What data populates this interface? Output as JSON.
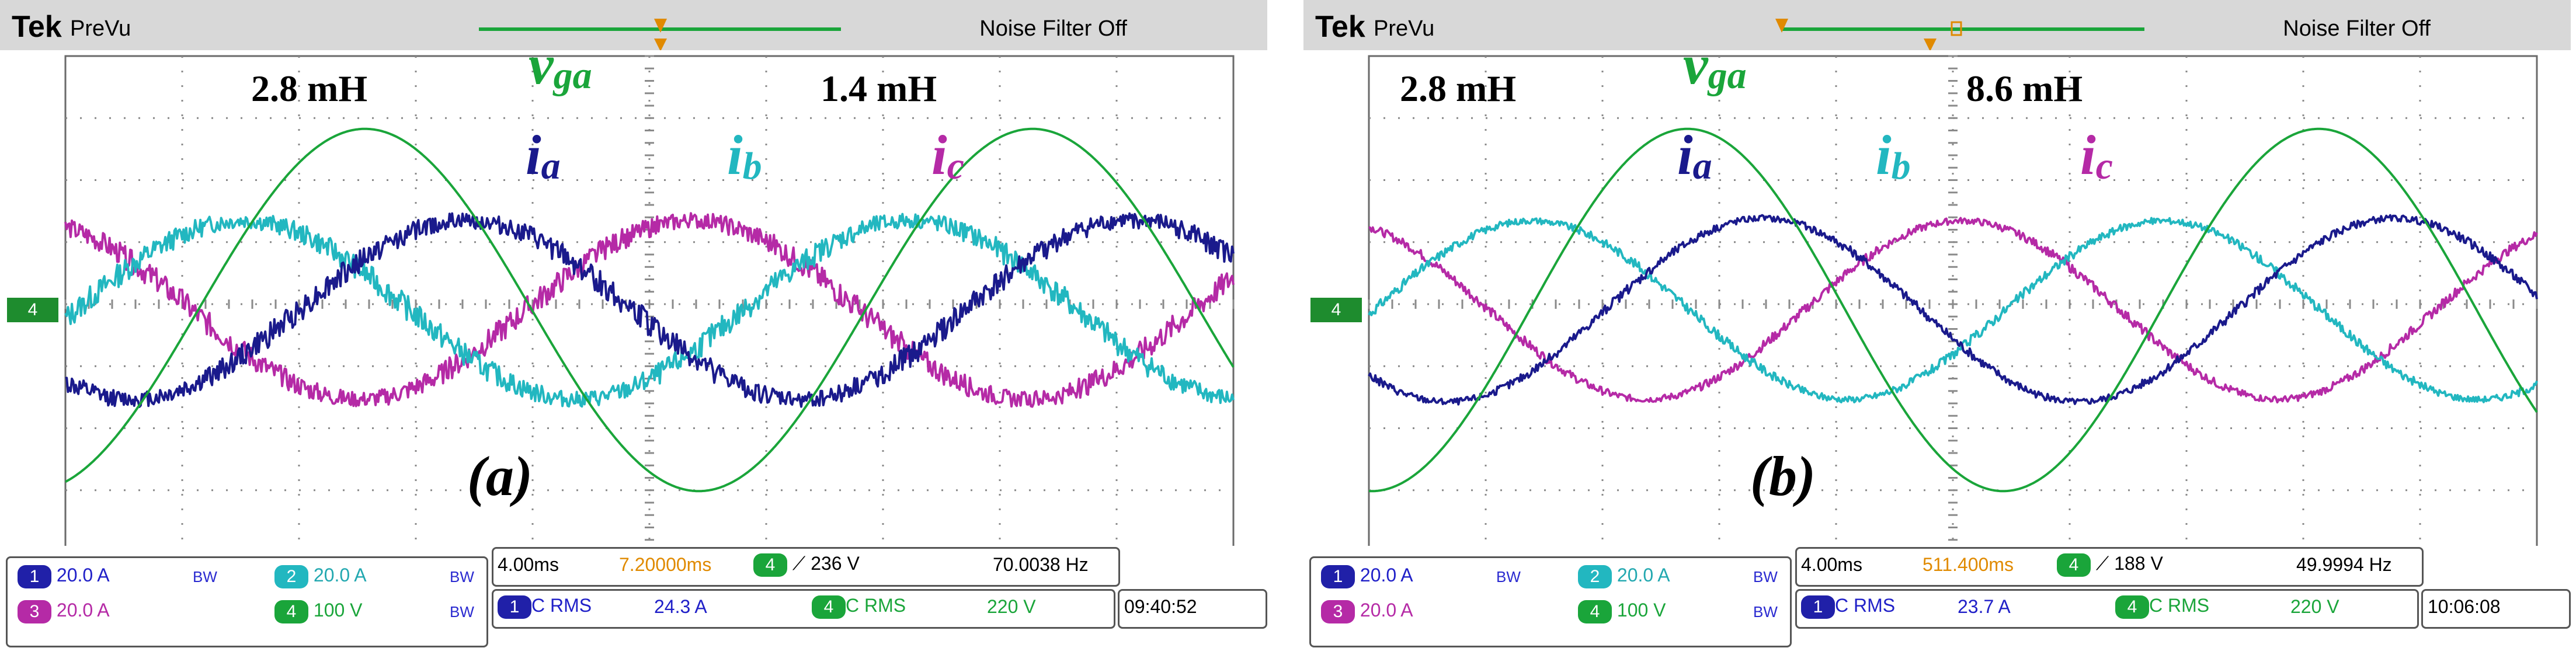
{
  "colors": {
    "ch1": "#1a1a8c",
    "ch2": "#22b7c0",
    "ch3": "#b52aa6",
    "ch4": "#1aa53a",
    "grid": "#8a8a8a",
    "timeoffset": "#e08a00"
  },
  "panels": [
    {
      "brand": "Tek",
      "mode": "PreVu",
      "noise_filter": "Noise Filter Off",
      "inductance_left": "2.8 mH",
      "inductance_right": "1.4 mH",
      "panel_letter": "(a)",
      "labels": {
        "vga_main": "v",
        "vga_sub": "ga",
        "ia_main": "i",
        "ia_sub": "a",
        "ib_main": "i",
        "ib_sub": "b",
        "ic_main": "i",
        "ic_sub": "c"
      },
      "ch4_marker": "4",
      "channels": [
        {
          "num": "1",
          "scale": "20.0 A",
          "color": "#1a1a8c"
        },
        {
          "num": "2",
          "scale": "20.0 A",
          "color": "#22b7c0"
        },
        {
          "num": "3",
          "scale": "20.0 A",
          "color": "#b52aa6"
        },
        {
          "num": "4",
          "scale": "100 V",
          "color": "#1aa53a"
        }
      ],
      "bw_label": "BW",
      "timebase": "4.00ms",
      "time_offset": "7.20000ms",
      "trigger_channel": "4",
      "trigger_level": "236 V",
      "frequency": "70.0038 Hz",
      "meas1_channel": "1",
      "meas1_label": "C RMS",
      "meas1_value": "24.3 A",
      "meas2_channel": "4",
      "meas2_label": "C RMS",
      "meas2_value": "220 V",
      "clock": "09:40:52"
    },
    {
      "brand": "Tek",
      "mode": "PreVu",
      "noise_filter": "Noise Filter Off",
      "inductance_left": "2.8 mH",
      "inductance_right": "8.6 mH",
      "panel_letter": "(b)",
      "labels": {
        "vga_main": "v",
        "vga_sub": "ga",
        "ia_main": "i",
        "ia_sub": "a",
        "ib_main": "i",
        "ib_sub": "b",
        "ic_main": "i",
        "ic_sub": "c"
      },
      "ch4_marker": "4",
      "channels": [
        {
          "num": "1",
          "scale": "20.0 A",
          "color": "#1a1a8c"
        },
        {
          "num": "2",
          "scale": "20.0 A",
          "color": "#22b7c0"
        },
        {
          "num": "3",
          "scale": "20.0 A",
          "color": "#b52aa6"
        },
        {
          "num": "4",
          "scale": "100 V",
          "color": "#1aa53a"
        }
      ],
      "bw_label": "BW",
      "timebase": "4.00ms",
      "time_offset": "511.400ms",
      "trigger_channel": "4",
      "trigger_level": "188 V",
      "frequency": "49.9994 Hz",
      "meas1_channel": "1",
      "meas1_label": "C RMS",
      "meas1_value": "23.7 A",
      "meas2_channel": "4",
      "meas2_label": "C RMS",
      "meas2_value": "220 V",
      "clock": "10:06:08"
    }
  ],
  "waveforms": {
    "a": {
      "vga": {
        "amp": 0.73,
        "phase": -1.25,
        "noise": 0.0,
        "offset": 0.0,
        "cycles": 1.75
      },
      "ia": {
        "amp": 0.36,
        "phase": -2.2,
        "noise": 0.05,
        "offset": 0.0,
        "cycles": 1.75
      },
      "ib": {
        "amp": 0.36,
        "phase": -0.1,
        "noise": 0.05,
        "offset": 0.0,
        "cycles": 1.75
      },
      "ic": {
        "amp": 0.36,
        "phase": 1.95,
        "noise": 0.05,
        "offset": 0.0,
        "cycles": 1.75
      }
    },
    "b": {
      "vga": {
        "amp": 0.73,
        "phase": -1.6,
        "noise": 0.0,
        "offset": 0.0,
        "cycles": 1.85
      },
      "ia": {
        "amp": 0.37,
        "phase": -2.35,
        "noise": 0.02,
        "offset": 0.0,
        "cycles": 1.85
      },
      "ib": {
        "amp": 0.36,
        "phase": -0.05,
        "noise": 0.02,
        "offset": 0.0,
        "cycles": 1.85
      },
      "ic": {
        "amp": 0.36,
        "phase": 1.95,
        "noise": 0.02,
        "offset": 0.0,
        "cycles": 1.85
      }
    }
  }
}
